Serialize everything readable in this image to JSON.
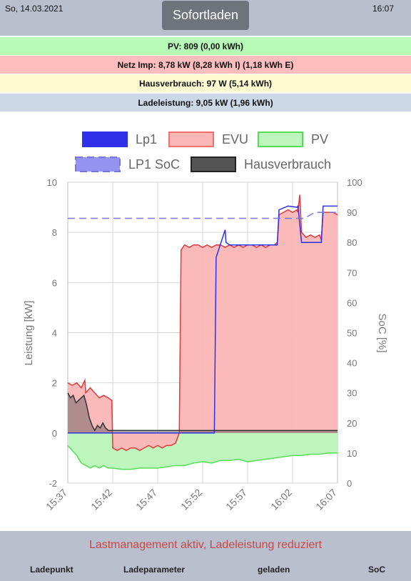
{
  "header": {
    "date": "So, 14.03.2021",
    "time": "16:07",
    "mode_button": "Sofortladen"
  },
  "status": {
    "pv": "PV: 809 (0,00 kWh)",
    "netz": "Netz Imp: 8,78 kW (8,28 kWh I) (1,18 kWh E)",
    "haus": "Hausverbrauch: 97 W (5,14 kWh)",
    "lade": "Ladeleistung: 9,05 kW (1,96 kWh)"
  },
  "colors": {
    "lp1": "#3030e8",
    "evu": "#f07070",
    "evu_fill": "#fbb6b6",
    "pv": "#55dd55",
    "pv_fill": "#bdf5bd",
    "soc": "#7777dd",
    "haus": "#333333"
  },
  "chart_data": {
    "type": "line",
    "title": "",
    "xlabel": "",
    "ylabel": "Leistung [kW]",
    "y2label": "SoC [%]",
    "ylim": [
      -2,
      10
    ],
    "y2lim": [
      0,
      100
    ],
    "yticks": [
      "-2",
      "0",
      "2",
      "4",
      "6",
      "8",
      "10"
    ],
    "y2ticks": [
      "0",
      "10",
      "20",
      "30",
      "40",
      "50",
      "60",
      "70",
      "80",
      "90",
      "100"
    ],
    "xticks": [
      "15:37",
      "15:42",
      "15:47",
      "15:52",
      "15:57",
      "16:02",
      "16:07"
    ],
    "legend": [
      {
        "name": "Lp1",
        "key": "lp1"
      },
      {
        "name": "EVU",
        "key": "evu"
      },
      {
        "name": "PV",
        "key": "pv"
      },
      {
        "name": "LP1 SoC",
        "key": "soc"
      },
      {
        "name": "Hausverbrauch",
        "key": "haus"
      }
    ],
    "grid": true,
    "series": [
      {
        "name": "Lp1",
        "axis": "left",
        "x": [
          0,
          4.9,
          5.0,
          12.4,
          12.6,
          13.0,
          13.5,
          14.0,
          16.0,
          16.2,
          16.3,
          16.5,
          17.5,
          17.6,
          18.0,
          19.0,
          19.5,
          20.0,
          20.1,
          20.2,
          21.9,
          22.0,
          22.5,
          23.2,
          23.3,
          23.5,
          24.5,
          25.5,
          25.6,
          26.0,
          27.0,
          28.0,
          28.2,
          28.4,
          30.0
        ],
        "y": [
          0,
          0,
          0,
          0,
          0,
          0,
          0,
          0,
          0,
          0,
          0,
          7.0,
          8.1,
          7.6,
          7.5,
          7.5,
          7.5,
          7.5,
          7.5,
          7.5,
          7.5,
          7.5,
          7.5,
          7.5,
          7.5,
          8.9,
          9.05,
          9.0,
          9.05,
          7.6,
          7.6,
          7.6,
          7.6,
          9.05,
          9.05
        ]
      },
      {
        "name": "EVU",
        "axis": "left",
        "x": [
          0,
          0.5,
          1.0,
          1.5,
          1.9,
          2.0,
          2.5,
          3.0,
          3.5,
          4.0,
          4.5,
          4.9,
          5.0,
          5.5,
          6.0,
          6.5,
          7.0,
          7.5,
          8.0,
          8.5,
          9.0,
          9.5,
          10.0,
          10.5,
          11.0,
          11.5,
          12.0,
          12.4,
          12.6,
          13.0,
          13.5,
          14.0,
          14.5,
          15.0,
          15.5,
          16.0,
          16.5,
          17.0,
          17.5,
          18.0,
          18.5,
          19.0,
          19.5,
          20.0,
          20.5,
          21.0,
          21.5,
          22.0,
          22.5,
          23.0,
          23.3,
          23.5,
          24.0,
          24.5,
          25.0,
          25.5,
          25.6,
          25.8,
          26.0,
          26.5,
          27.0,
          27.5,
          28.0,
          28.2,
          28.4,
          29.0,
          29.5,
          30.0
        ],
        "y": [
          2.0,
          1.9,
          2.0,
          1.8,
          2.1,
          1.6,
          1.8,
          1.6,
          1.4,
          1.5,
          1.4,
          1.3,
          -0.6,
          -0.7,
          -0.6,
          -0.7,
          -0.6,
          -0.6,
          -0.7,
          -0.6,
          -0.5,
          -0.6,
          -0.5,
          -0.6,
          -0.5,
          -0.5,
          -0.4,
          0.0,
          7.3,
          7.5,
          7.4,
          7.5,
          7.5,
          7.4,
          7.5,
          7.4,
          7.5,
          7.5,
          7.4,
          7.5,
          7.4,
          7.5,
          7.4,
          7.5,
          7.5,
          7.4,
          7.5,
          7.4,
          7.5,
          7.5,
          7.6,
          8.7,
          8.8,
          8.9,
          8.8,
          8.9,
          8.8,
          9.5,
          8.0,
          7.8,
          7.9,
          7.8,
          7.9,
          7.7,
          8.8,
          8.8,
          8.8,
          8.7
        ]
      },
      {
        "name": "PV",
        "axis": "left",
        "x": [
          0,
          0.5,
          1.0,
          1.5,
          2.0,
          2.5,
          3.0,
          3.5,
          4.0,
          4.5,
          5.0,
          6.0,
          7.0,
          8.0,
          9.0,
          10.0,
          11.0,
          12.0,
          13.0,
          14.0,
          15.0,
          16.0,
          17.0,
          18.0,
          19.0,
          20.0,
          21.0,
          22.0,
          23.0,
          24.0,
          25.0,
          26.0,
          27.0,
          28.0,
          29.0,
          30.0
        ],
        "y": [
          -0.5,
          -0.7,
          -0.9,
          -1.2,
          -1.3,
          -1.4,
          -1.3,
          -1.4,
          -1.3,
          -1.4,
          -1.4,
          -1.45,
          -1.45,
          -1.4,
          -1.4,
          -1.4,
          -1.35,
          -1.3,
          -1.3,
          -1.2,
          -1.15,
          -1.2,
          -1.1,
          -1.1,
          -1.05,
          -1.15,
          -1.1,
          -1.05,
          -1.0,
          -0.95,
          -0.9,
          -0.9,
          -0.85,
          -0.85,
          -0.8,
          -0.8
        ]
      },
      {
        "name": "Hausverbrauch",
        "axis": "left",
        "x": [
          0,
          0.3,
          0.6,
          0.9,
          1.2,
          1.5,
          1.8,
          2.1,
          2.4,
          2.7,
          3.0,
          3.3,
          3.6,
          3.9,
          4.2,
          4.5,
          4.8,
          4.9,
          5.0,
          10.0,
          20.0,
          30.0
        ],
        "y": [
          1.6,
          1.4,
          1.5,
          1.2,
          1.3,
          1.4,
          1.5,
          1.1,
          0.6,
          0.3,
          0.1,
          0.3,
          0.2,
          0.4,
          0.2,
          0.1,
          0.1,
          0.1,
          0.1,
          0.1,
          0.1,
          0.1
        ]
      },
      {
        "name": "LP1 SoC",
        "axis": "right",
        "x": [
          0,
          26.3,
          27.5,
          30.0
        ],
        "y": [
          88,
          88,
          90,
          90
        ]
      }
    ]
  },
  "footer": {
    "message": "Lastmanagement aktiv, Ladeleistung reduziert",
    "col1": "Ladepunkt",
    "col2": "Ladeparameter",
    "col3": "geladen",
    "col4": "SoC"
  }
}
